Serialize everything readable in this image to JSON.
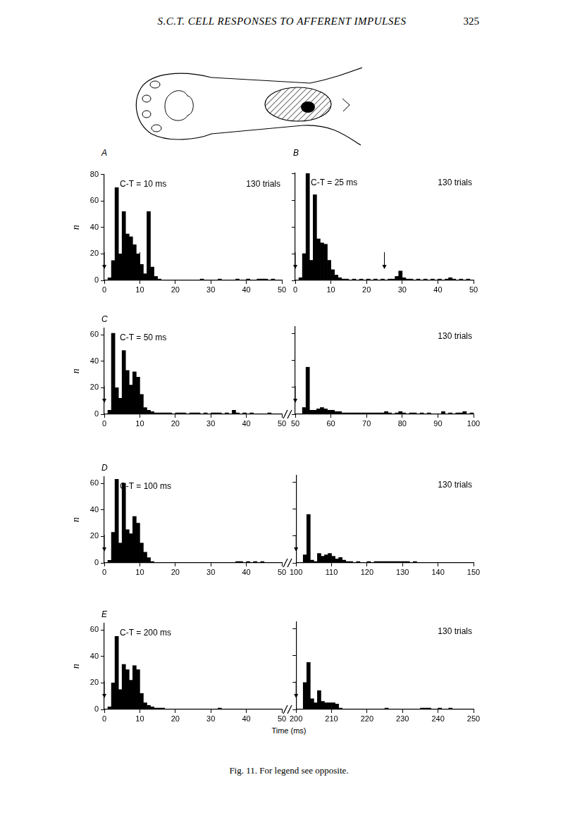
{
  "header": {
    "running_title": "S.C.T. CELL RESPONSES TO AFFERENT IMPULSES",
    "page": "325"
  },
  "caption": "Fig. 11. For legend see opposite.",
  "chart_data": [
    {
      "type": "histogram",
      "panel": "A",
      "title": "C-T = 10 ms",
      "annotation": "130 trials",
      "y_label": "n",
      "color": "#000000",
      "xlim": [
        0,
        50
      ],
      "xticks": [
        0,
        10,
        20,
        30,
        40,
        50
      ],
      "ylim": [
        0,
        80
      ],
      "yticks": [
        0,
        20,
        40,
        60,
        80
      ],
      "arrows": [
        0,
        10
      ],
      "bins": [
        0,
        1,
        2,
        3,
        4,
        5,
        6,
        7,
        8,
        9,
        10,
        11,
        12,
        13,
        14,
        15,
        16,
        17,
        18,
        19,
        20,
        21,
        22,
        23,
        24,
        25,
        26,
        27,
        28,
        29,
        30,
        31,
        32,
        33,
        34,
        35,
        36,
        37,
        38,
        39,
        40,
        41,
        42,
        43,
        44,
        45,
        46,
        47,
        48,
        49,
        50
      ],
      "counts": [
        0,
        2,
        15,
        70,
        20,
        52,
        35,
        33,
        27,
        20,
        12,
        5,
        52,
        10,
        3,
        1,
        0,
        0,
        0,
        0,
        0,
        0,
        0,
        0,
        0,
        0,
        0,
        1,
        0,
        0,
        0,
        0,
        1,
        0,
        0,
        0,
        0,
        1,
        0,
        0,
        1,
        0,
        0,
        1,
        1,
        1,
        0,
        1,
        0,
        0
      ]
    },
    {
      "type": "histogram",
      "panel": "B",
      "title": "C-T = 25 ms",
      "annotation": "130 trials",
      "color": "#000000",
      "tick_labels": "x",
      "xlim": [
        0,
        50
      ],
      "xticks": [
        0,
        10,
        20,
        30,
        40,
        50
      ],
      "ylim": [
        0,
        80
      ],
      "yticks": [
        0,
        20,
        40,
        60,
        80
      ],
      "arrows": [
        0,
        25
      ],
      "bins": [
        0,
        1,
        2,
        3,
        4,
        5,
        6,
        7,
        8,
        9,
        10,
        11,
        12,
        13,
        14,
        15,
        16,
        17,
        18,
        19,
        20,
        21,
        22,
        23,
        24,
        25,
        26,
        27,
        28,
        29,
        30,
        31,
        32,
        33,
        34,
        35,
        36,
        37,
        38,
        39,
        40,
        41,
        42,
        43,
        44,
        45,
        46,
        47,
        48,
        49,
        50
      ],
      "counts": [
        0,
        2,
        20,
        80,
        15,
        64,
        31,
        28,
        27,
        15,
        8,
        4,
        2,
        1,
        1,
        0,
        1,
        0,
        1,
        0,
        1,
        0,
        1,
        0,
        1,
        0,
        1,
        1,
        3,
        7,
        2,
        1,
        1,
        0,
        1,
        0,
        1,
        0,
        1,
        0,
        1,
        0,
        1,
        2,
        1,
        0,
        1,
        0,
        1,
        0
      ]
    },
    {
      "type": "histogram",
      "panel": "C",
      "title": "C-T = 50 ms",
      "y_label": "n",
      "color": "#000000",
      "xlim": [
        0,
        50
      ],
      "xticks": [
        0,
        10,
        20,
        30,
        40,
        50
      ],
      "ylim": [
        0,
        65
      ],
      "yticks": [
        0,
        20,
        40,
        60
      ],
      "arrows": [
        0
      ],
      "bins": [
        0,
        1,
        2,
        3,
        4,
        5,
        6,
        7,
        8,
        9,
        10,
        11,
        12,
        13,
        14,
        15,
        16,
        17,
        18,
        19,
        20,
        21,
        22,
        23,
        24,
        25,
        26,
        27,
        28,
        29,
        30,
        31,
        32,
        33,
        34,
        35,
        36,
        37,
        38,
        39,
        40,
        41,
        42,
        43,
        44,
        45,
        46,
        47,
        48,
        49,
        50
      ],
      "counts": [
        0,
        3,
        61,
        20,
        12,
        48,
        33,
        22,
        32,
        28,
        15,
        5,
        3,
        2,
        1,
        1,
        1,
        1,
        1,
        0,
        1,
        1,
        1,
        0,
        1,
        1,
        1,
        0,
        1,
        0,
        1,
        1,
        1,
        0,
        1,
        0,
        3,
        1,
        0,
        1,
        0,
        1,
        0,
        0,
        0,
        0,
        1,
        0,
        0,
        0
      ]
    },
    {
      "type": "histogram",
      "annotation": "130 trials",
      "color": "#000000",
      "tick_labels": "x",
      "xlim": [
        50,
        100
      ],
      "xticks": [
        50,
        60,
        70,
        80,
        90,
        100
      ],
      "ylim": [
        0,
        65
      ],
      "yticks": [
        0,
        20,
        40,
        60
      ],
      "arrows": [
        50
      ],
      "bins": [
        50,
        51,
        52,
        53,
        54,
        55,
        56,
        57,
        58,
        59,
        60,
        61,
        62,
        63,
        64,
        65,
        66,
        67,
        68,
        69,
        70,
        71,
        72,
        73,
        74,
        75,
        76,
        77,
        78,
        79,
        80,
        81,
        82,
        83,
        84,
        85,
        86,
        87,
        88,
        89,
        90,
        91,
        92,
        93,
        94,
        95,
        96,
        97,
        98,
        99,
        100
      ],
      "counts": [
        0,
        0,
        5,
        35,
        3,
        3,
        4,
        5,
        4,
        3,
        3,
        2,
        2,
        1,
        1,
        1,
        1,
        1,
        1,
        1,
        1,
        1,
        1,
        1,
        1,
        2,
        1,
        0,
        1,
        2,
        1,
        0,
        1,
        1,
        0,
        1,
        0,
        1,
        0,
        0,
        0,
        2,
        0,
        1,
        0,
        1,
        1,
        2,
        0,
        1
      ]
    },
    {
      "type": "histogram",
      "panel": "D",
      "title": "C-T = 100 ms",
      "y_label": "n",
      "color": "#000000",
      "xlim": [
        0,
        50
      ],
      "xticks": [
        0,
        10,
        20,
        30,
        40,
        50
      ],
      "ylim": [
        0,
        65
      ],
      "yticks": [
        0,
        20,
        40,
        60
      ],
      "arrows": [
        0
      ],
      "bins": [
        0,
        1,
        2,
        3,
        4,
        5,
        6,
        7,
        8,
        9,
        10,
        11,
        12,
        13,
        14,
        15,
        16,
        17,
        18,
        19,
        20,
        21,
        22,
        23,
        24,
        25,
        26,
        27,
        28,
        29,
        30,
        31,
        32,
        33,
        34,
        35,
        36,
        37,
        38,
        39,
        40,
        41,
        42,
        43,
        44,
        45,
        46,
        47,
        48,
        49,
        50
      ],
      "counts": [
        0,
        2,
        23,
        63,
        15,
        60,
        25,
        22,
        35,
        30,
        15,
        8,
        4,
        1,
        0,
        0,
        0,
        0,
        0,
        0,
        0,
        0,
        0,
        0,
        0,
        0,
        0,
        0,
        0,
        0,
        0,
        0,
        0,
        0,
        0,
        0,
        0,
        1,
        1,
        0,
        1,
        0,
        1,
        0,
        1,
        0,
        0,
        0,
        0,
        0
      ]
    },
    {
      "type": "histogram",
      "annotation": "130 trials",
      "color": "#000000",
      "tick_labels": "x",
      "xlim": [
        100,
        150
      ],
      "xticks": [
        100,
        110,
        120,
        130,
        140,
        150
      ],
      "ylim": [
        0,
        65
      ],
      "yticks": [
        0,
        20,
        40,
        60
      ],
      "arrows": [
        100
      ],
      "bins": [
        100,
        101,
        102,
        103,
        104,
        105,
        106,
        107,
        108,
        109,
        110,
        111,
        112,
        113,
        114,
        115,
        116,
        117,
        118,
        119,
        120,
        121,
        122,
        123,
        124,
        125,
        126,
        127,
        128,
        129,
        130,
        131,
        132,
        133,
        134,
        135,
        136,
        137,
        138,
        139,
        140,
        141,
        142,
        143,
        144,
        145,
        146,
        147,
        148,
        149,
        150
      ],
      "counts": [
        0,
        0,
        6,
        36,
        2,
        1,
        7,
        5,
        6,
        7,
        5,
        3,
        4,
        2,
        1,
        1,
        0,
        1,
        0,
        0,
        1,
        0,
        1,
        1,
        1,
        1,
        1,
        1,
        1,
        1,
        1,
        1,
        0,
        1,
        0,
        0,
        0,
        0,
        0,
        0,
        0,
        0,
        0,
        0,
        0,
        0,
        0,
        0,
        0,
        0
      ]
    },
    {
      "type": "histogram",
      "panel": "E",
      "title": "C-T = 200 ms",
      "y_label": "n",
      "x_label": "Time (ms)",
      "color": "#000000",
      "xlim": [
        0,
        50
      ],
      "xticks": [
        0,
        10,
        20,
        30,
        40,
        50
      ],
      "ylim": [
        0,
        65
      ],
      "yticks": [
        0,
        20,
        40,
        60
      ],
      "arrows": [
        0
      ],
      "bins": [
        0,
        1,
        2,
        3,
        4,
        5,
        6,
        7,
        8,
        9,
        10,
        11,
        12,
        13,
        14,
        15,
        16,
        17,
        18,
        19,
        20,
        21,
        22,
        23,
        24,
        25,
        26,
        27,
        28,
        29,
        30,
        31,
        32,
        33,
        34,
        35,
        36,
        37,
        38,
        39,
        40,
        41,
        42,
        43,
        44,
        45,
        46,
        47,
        48,
        49,
        50
      ],
      "counts": [
        0,
        2,
        20,
        55,
        15,
        34,
        30,
        22,
        33,
        30,
        12,
        5,
        3,
        2,
        1,
        1,
        1,
        0,
        0,
        0,
        0,
        0,
        0,
        0,
        0,
        0,
        0,
        0,
        0,
        0,
        0,
        0,
        1,
        0,
        0,
        0,
        0,
        0,
        0,
        0,
        0,
        0,
        0,
        0,
        0,
        0,
        0,
        0,
        0,
        0
      ]
    },
    {
      "type": "histogram",
      "annotation": "130 trials",
      "color": "#000000",
      "tick_labels": "x",
      "xlim": [
        200,
        250
      ],
      "xticks": [
        200,
        210,
        220,
        230,
        240,
        250
      ],
      "ylim": [
        0,
        65
      ],
      "yticks": [
        0,
        20,
        40,
        60
      ],
      "arrows": [
        200
      ],
      "bins": [
        200,
        201,
        202,
        203,
        204,
        205,
        206,
        207,
        208,
        209,
        210,
        211,
        212,
        213,
        214,
        215,
        216,
        217,
        218,
        219,
        220,
        221,
        222,
        223,
        224,
        225,
        226,
        227,
        228,
        229,
        230,
        231,
        232,
        233,
        234,
        235,
        236,
        237,
        238,
        239,
        240,
        241,
        242,
        243,
        244,
        245,
        246,
        247,
        248,
        249,
        250
      ],
      "counts": [
        0,
        0,
        20,
        35,
        8,
        5,
        14,
        6,
        5,
        5,
        5,
        4,
        1,
        0,
        0,
        0,
        0,
        0,
        0,
        0,
        0,
        0,
        0,
        0,
        0,
        1,
        0,
        0,
        0,
        0,
        0,
        0,
        0,
        0,
        0,
        1,
        1,
        1,
        0,
        0,
        1,
        0,
        0,
        1,
        0,
        0,
        0,
        0,
        0,
        0
      ]
    }
  ]
}
